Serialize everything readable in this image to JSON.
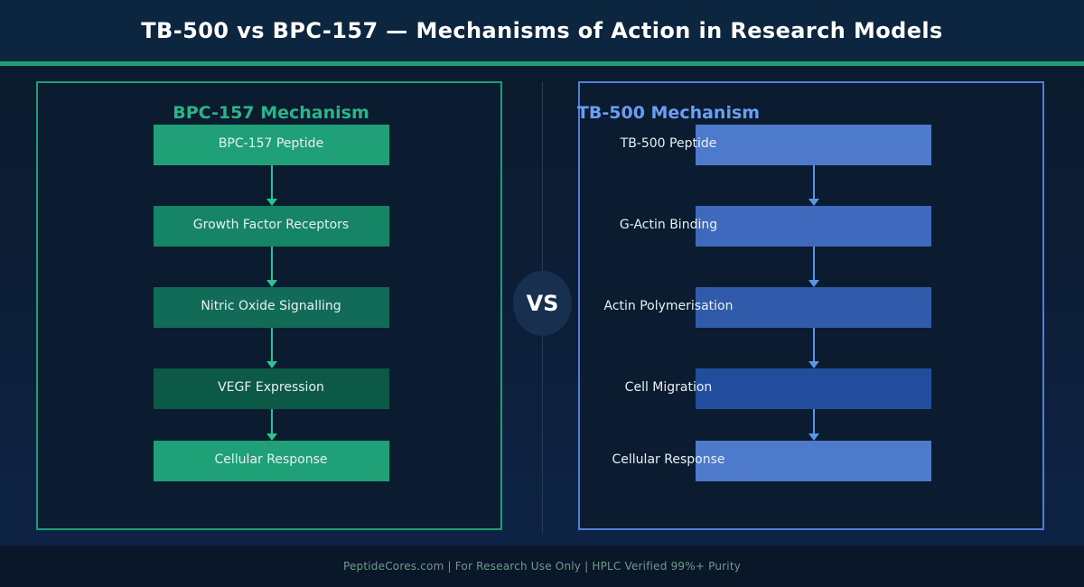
{
  "header": {
    "title": "TB-500 vs BPC-157 — Mechanisms of Action in Research Models"
  },
  "left_panel": {
    "title": "BPC-157 Mechanism",
    "steps": [
      {
        "label": "BPC-157 Peptide",
        "color": "#1fa077"
      },
      {
        "label": "Growth Factor Receptors",
        "color": "#168566"
      },
      {
        "label": "Nitric Oxide Signalling",
        "color": "#116b56"
      },
      {
        "label": "VEGF Expression",
        "color": "#0c5a46"
      },
      {
        "label": "Cellular Response",
        "color": "#1fa077"
      }
    ],
    "connector_color": "#29c48f"
  },
  "right_panel": {
    "title": "TB-500 Mechanism",
    "steps": [
      {
        "label": "TB-500 Peptide",
        "color": "#4e7acc"
      },
      {
        "label": "G-Actin Binding",
        "color": "#3e69bd"
      },
      {
        "label": "Actin Polymerisation",
        "color": "#305aaa"
      },
      {
        "label": "Cell Migration",
        "color": "#224c9c"
      },
      {
        "label": "Cellular Response",
        "color": "#4e7acc"
      }
    ],
    "connector_color": "#5b95e6"
  },
  "vs_label": "VS",
  "footer": {
    "text": "PeptideCores.com  |  For Research Use Only  |  HPLC Verified 99%+ Purity"
  },
  "colors": {
    "green_accent": "#1f9e76",
    "blue_accent": "#4f7fd6",
    "header_bg": "#0d2640"
  }
}
